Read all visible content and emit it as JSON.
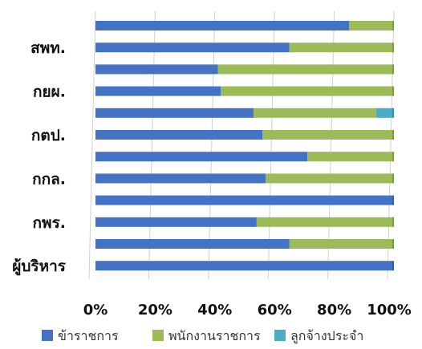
{
  "chart_data": {
    "type": "bar",
    "orientation": "horizontal",
    "stacked": "percent",
    "categories": [
      "",
      "สพท.",
      "",
      "กยผ.",
      "",
      "กตป.",
      "",
      "กกล.",
      "",
      "กพร.",
      "",
      "ผู้บริหาร"
    ],
    "series": [
      {
        "name": "ข้าราชการ",
        "color": "#4472C4",
        "values": [
          85,
          65,
          41,
          42,
          53,
          56,
          71,
          57,
          100,
          54,
          65,
          100
        ]
      },
      {
        "name": "พนักงานราชการ",
        "color": "#9BBB59",
        "values": [
          15,
          35,
          59,
          58,
          41,
          44,
          29,
          43,
          0,
          46,
          35,
          0
        ]
      },
      {
        "name": "ลูกจ้างประจำ",
        "color": "#4BACC6",
        "values": [
          0,
          0,
          0,
          0,
          6,
          0,
          0,
          0,
          0,
          0,
          0,
          0
        ]
      }
    ],
    "xticks": [
      "0%",
      "20%",
      "40%",
      "60%",
      "80%",
      "100%"
    ],
    "xlim": [
      0,
      100
    ],
    "grid": true,
    "legend_position": "bottom"
  }
}
